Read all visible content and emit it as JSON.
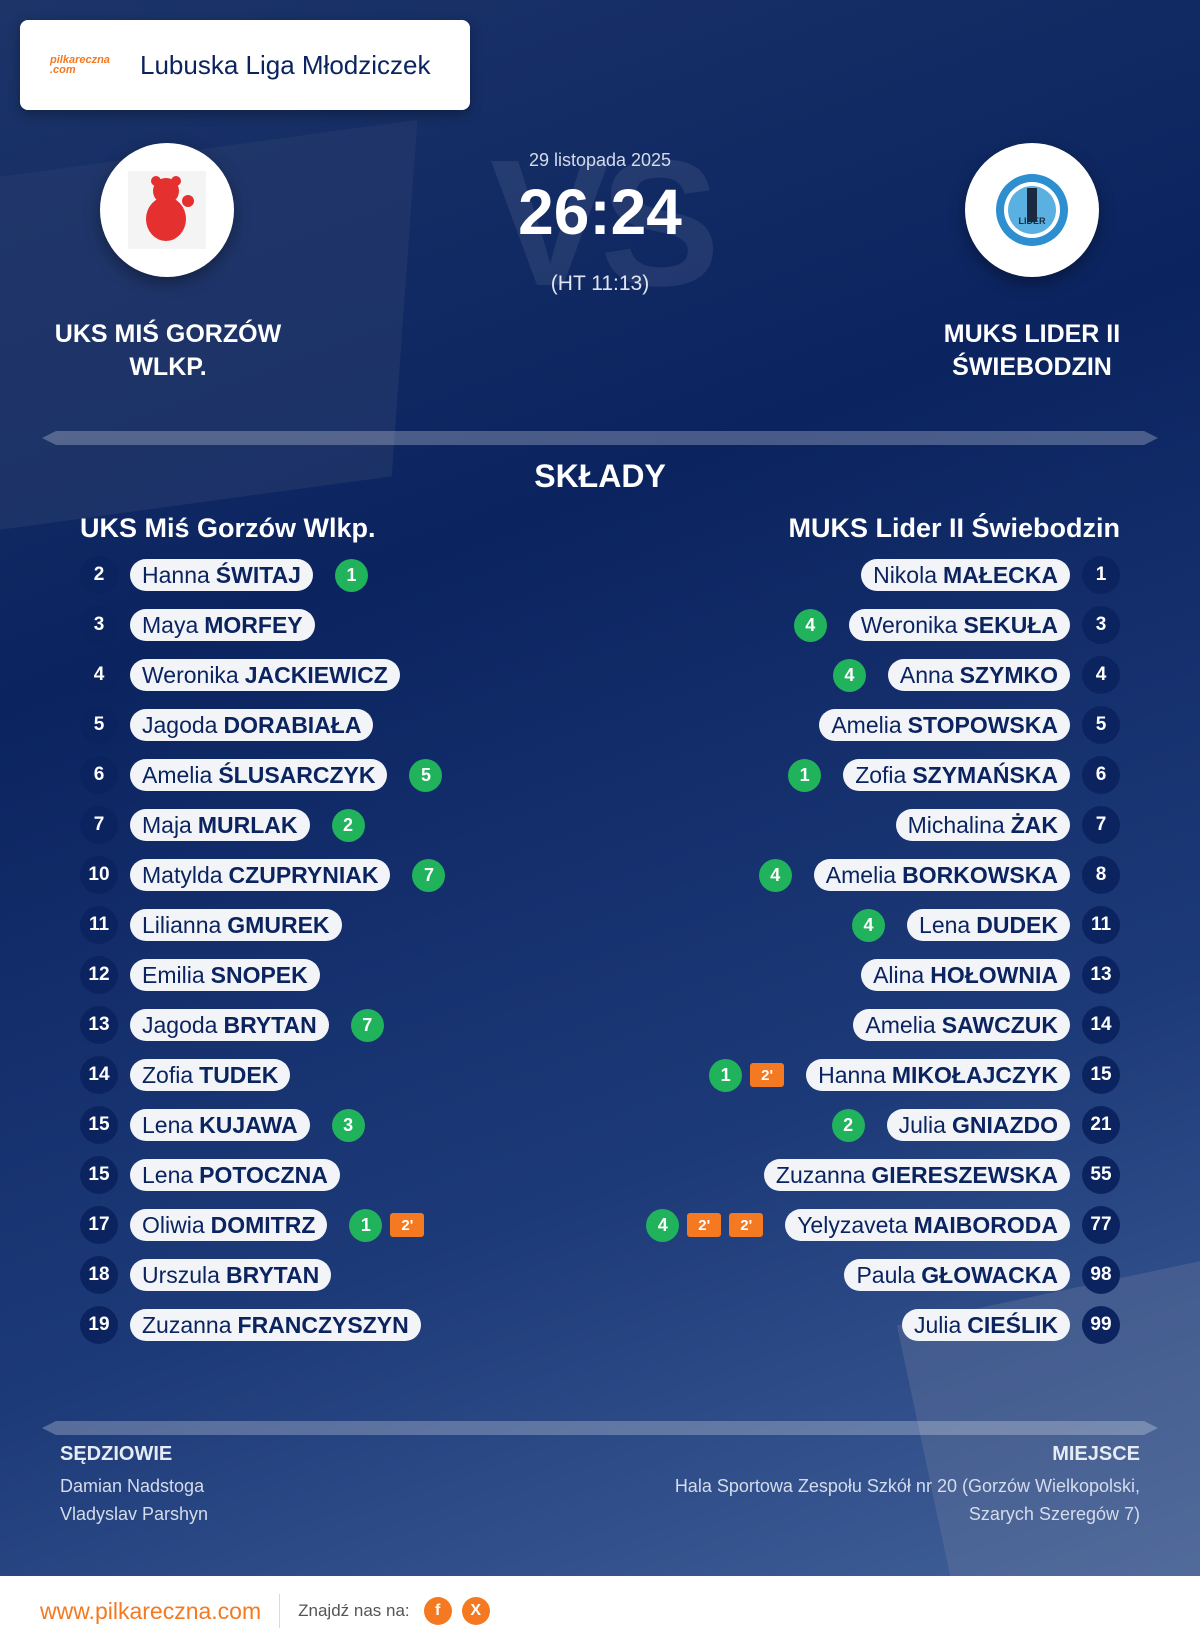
{
  "header": {
    "league": "Lubuska Liga Młodziczek",
    "brand": "pilkareczna",
    "brand_suffix": ".com"
  },
  "match": {
    "date": "29 listopada 2025",
    "score": "26:24",
    "halftime": "(HT 11:13)",
    "vs": "VS"
  },
  "home": {
    "name_upper": "UKS MIŚ GORZÓW WLKP.",
    "name": "UKS Miś Gorzów Wlkp.",
    "logo": "bear-logo",
    "players": [
      {
        "no": "2",
        "first": "Hanna",
        "last": "ŚWITAJ",
        "goals": "1",
        "pens": []
      },
      {
        "no": "3",
        "first": "Maya",
        "last": "MORFEY",
        "goals": "",
        "pens": []
      },
      {
        "no": "4",
        "first": "Weronika",
        "last": "JACKIEWICZ",
        "goals": "",
        "pens": []
      },
      {
        "no": "5",
        "first": "Jagoda",
        "last": "DORABIAŁA",
        "goals": "",
        "pens": []
      },
      {
        "no": "6",
        "first": "Amelia",
        "last": "ŚLUSARCZYK",
        "goals": "5",
        "pens": []
      },
      {
        "no": "7",
        "first": "Maja",
        "last": "MURLAK",
        "goals": "2",
        "pens": []
      },
      {
        "no": "10",
        "first": "Matylda",
        "last": "CZUPRYNIAK",
        "goals": "7",
        "pens": []
      },
      {
        "no": "11",
        "first": "Lilianna",
        "last": "GMUREK",
        "goals": "",
        "pens": []
      },
      {
        "no": "12",
        "first": "Emilia",
        "last": "SNOPEK",
        "goals": "",
        "pens": []
      },
      {
        "no": "13",
        "first": "Jagoda",
        "last": "BRYTAN",
        "goals": "7",
        "pens": []
      },
      {
        "no": "14",
        "first": "Zofia",
        "last": "TUDEK",
        "goals": "",
        "pens": []
      },
      {
        "no": "15",
        "first": "Lena",
        "last": "KUJAWA",
        "goals": "3",
        "pens": []
      },
      {
        "no": "15",
        "first": "Lena",
        "last": "POTOCZNA",
        "goals": "",
        "pens": []
      },
      {
        "no": "17",
        "first": "Oliwia",
        "last": "DOMITRZ",
        "goals": "1",
        "pens": [
          "2'"
        ]
      },
      {
        "no": "18",
        "first": "Urszula",
        "last": "BRYTAN",
        "goals": "",
        "pens": []
      },
      {
        "no": "19",
        "first": "Zuzanna",
        "last": "FRANCZYSZYN",
        "goals": "",
        "pens": []
      }
    ]
  },
  "away": {
    "name_upper": "MUKS LIDER II ŚWIEBODZIN",
    "name": "MUKS Lider II Świebodzin",
    "logo": "lider-logo",
    "players": [
      {
        "no": "1",
        "first": "Nikola",
        "last": "MAŁECKA",
        "goals": "",
        "pens": []
      },
      {
        "no": "3",
        "first": "Weronika",
        "last": "SEKUŁA",
        "goals": "4",
        "pens": []
      },
      {
        "no": "4",
        "first": "Anna",
        "last": "SZYMKO",
        "goals": "4",
        "pens": []
      },
      {
        "no": "5",
        "first": "Amelia",
        "last": "STOPOWSKA",
        "goals": "",
        "pens": []
      },
      {
        "no": "6",
        "first": "Zofia",
        "last": "SZYMAŃSKA",
        "goals": "1",
        "pens": []
      },
      {
        "no": "7",
        "first": "Michalina",
        "last": "ŻAK",
        "goals": "",
        "pens": []
      },
      {
        "no": "8",
        "first": "Amelia",
        "last": "BORKOWSKA",
        "goals": "4",
        "pens": []
      },
      {
        "no": "11",
        "first": "Lena",
        "last": "DUDEK",
        "goals": "4",
        "pens": []
      },
      {
        "no": "13",
        "first": "Alina",
        "last": "HOŁOWNIA",
        "goals": "",
        "pens": []
      },
      {
        "no": "14",
        "first": "Amelia",
        "last": "SAWCZUK",
        "goals": "",
        "pens": []
      },
      {
        "no": "15",
        "first": "Hanna",
        "last": "MIKOŁAJCZYK",
        "goals": "1",
        "pens": [
          "2'"
        ]
      },
      {
        "no": "21",
        "first": "Julia",
        "last": "GNIAZDO",
        "goals": "2",
        "pens": []
      },
      {
        "no": "55",
        "first": "Zuzanna",
        "last": "GIERESZEWSKA",
        "goals": "",
        "pens": []
      },
      {
        "no": "77",
        "first": "Yelyzaveta",
        "last": "MAIBORODA",
        "goals": "4",
        "pens": [
          "2'",
          "2'"
        ]
      },
      {
        "no": "98",
        "first": "Paula",
        "last": "GŁOWACKA",
        "goals": "",
        "pens": []
      },
      {
        "no": "99",
        "first": "Julia",
        "last": "CIEŚLIK",
        "goals": "",
        "pens": []
      }
    ]
  },
  "lineups": {
    "title": "SKŁADY"
  },
  "officials": {
    "title": "SĘDZIOWIE",
    "names": [
      "Damian Nadstoga",
      "Vladyslav Parshyn"
    ]
  },
  "venue": {
    "title": "MIEJSCE",
    "line1": "Hala Sportowa Zespołu Szkół nr 20 (Gorzów Wielkopolski,",
    "line2": "Szarych Szeregów 7)"
  },
  "footer": {
    "url": "www.pilkareczna.com",
    "find_us": "Znajdź nas na:",
    "social": [
      "f",
      "X"
    ]
  },
  "colors": {
    "navy": "#0b2460",
    "goal": "#20b35c",
    "penalty": "#f47920"
  }
}
